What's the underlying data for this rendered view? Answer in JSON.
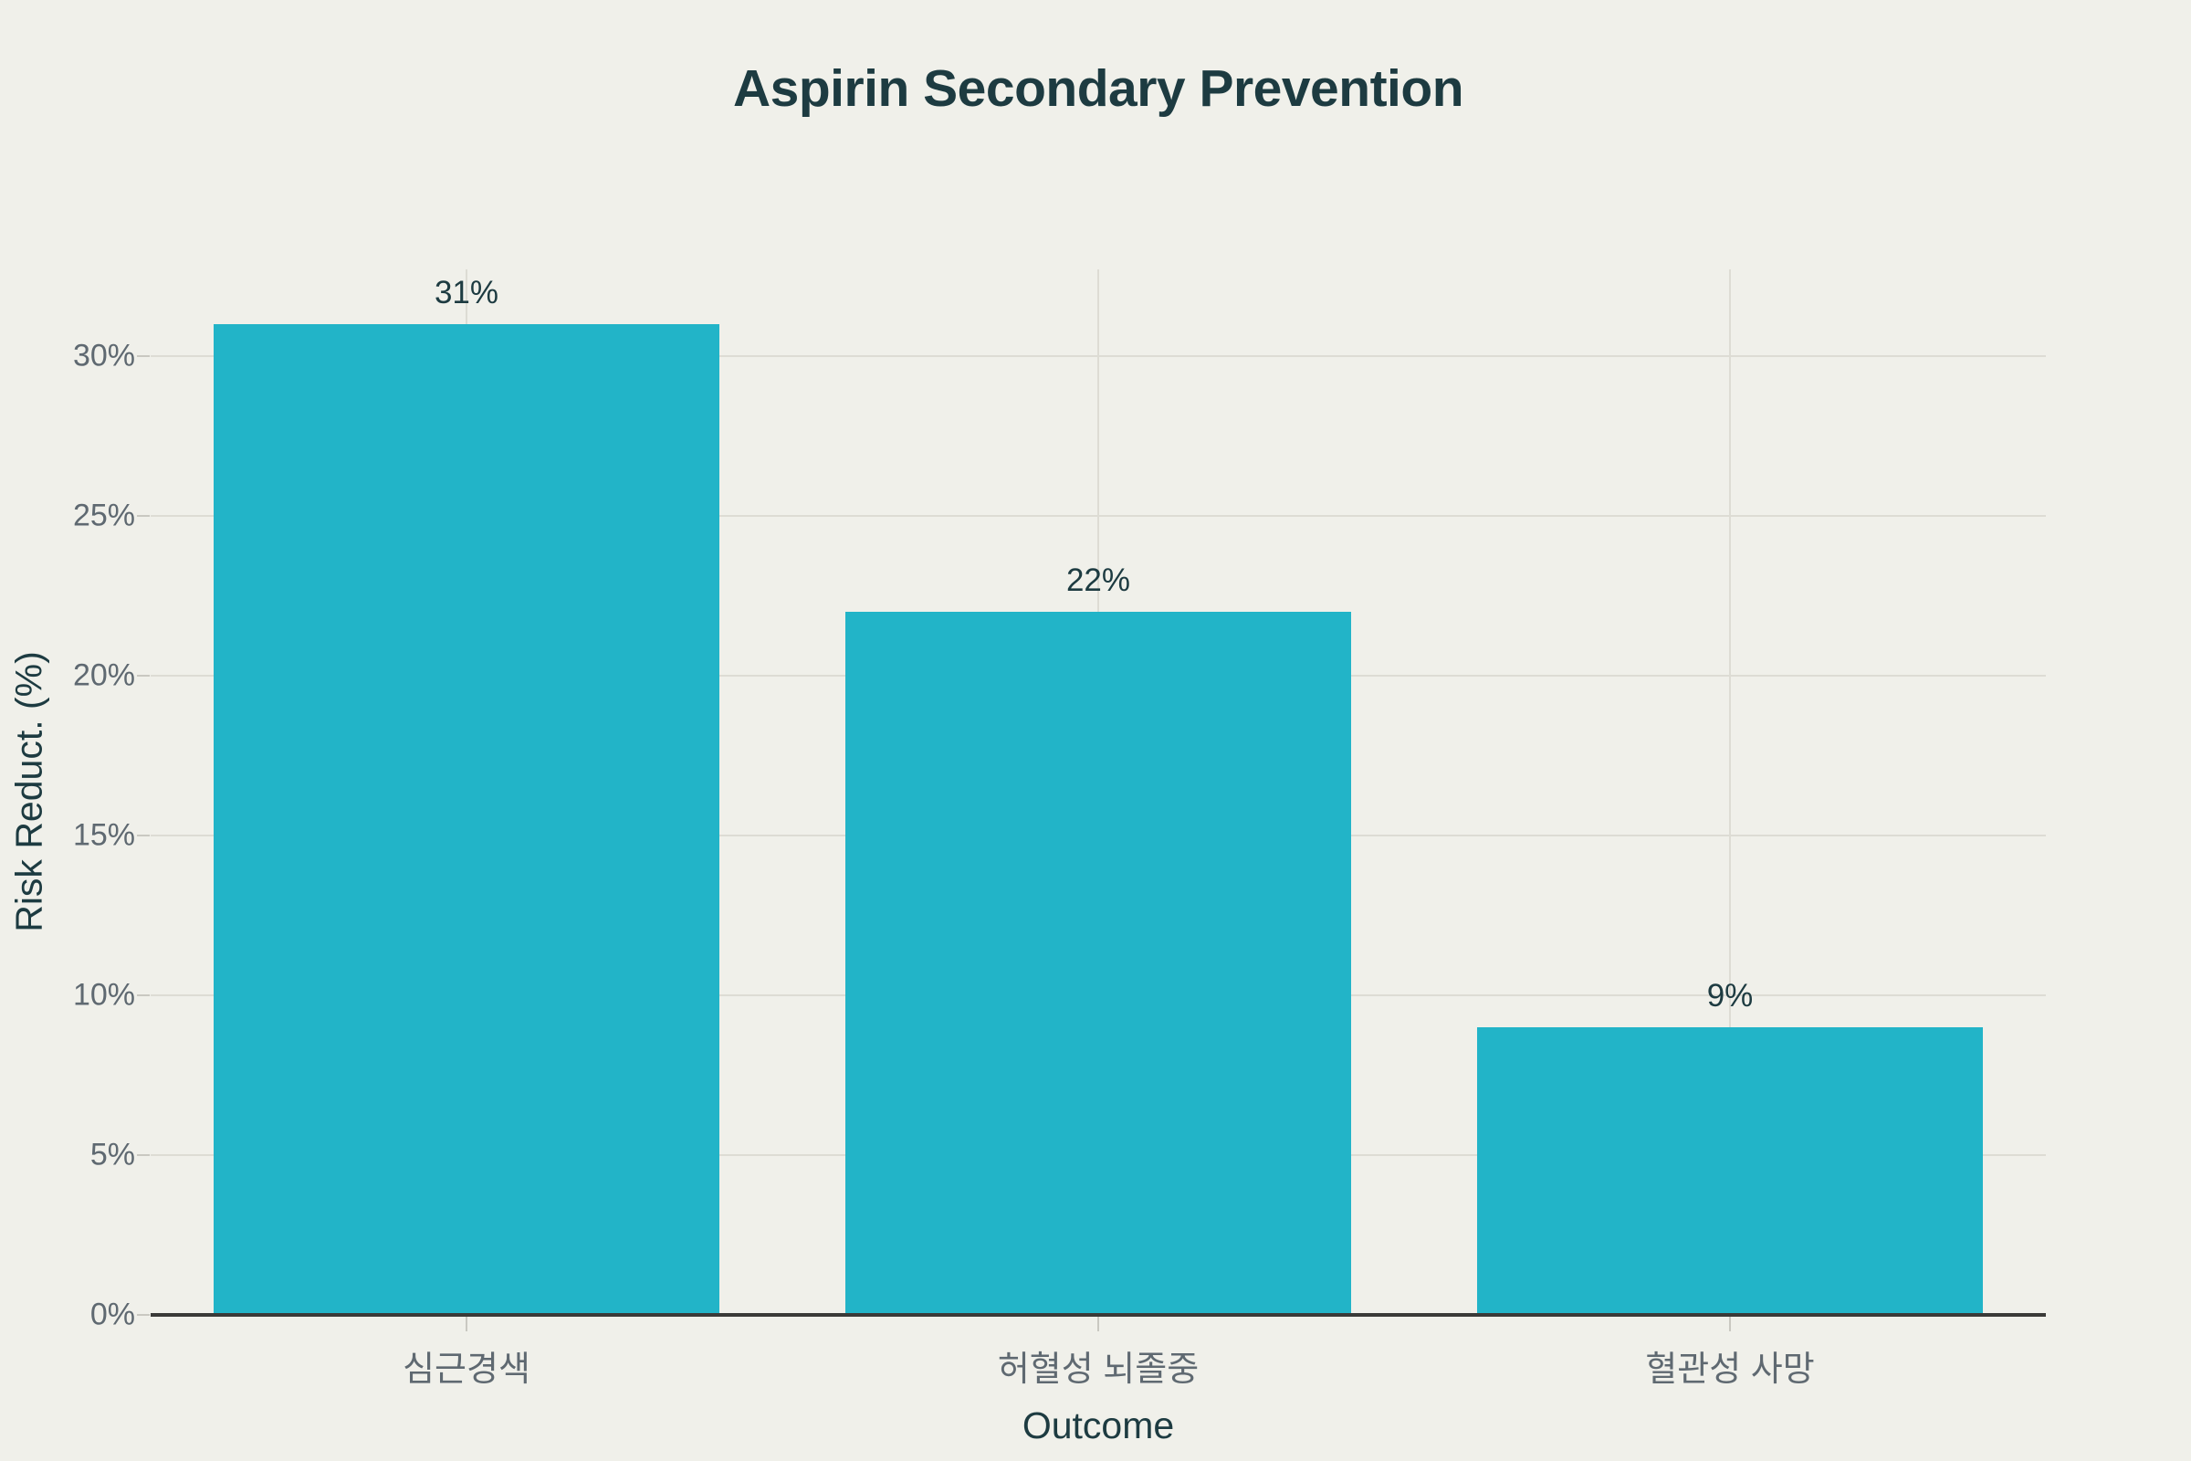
{
  "page": {
    "background_color": "#f0f0ea"
  },
  "chart_data": {
    "type": "bar",
    "title": "Aspirin Secondary Prevention",
    "xlabel": "Outcome",
    "ylabel": "Risk Reduct. (%)",
    "categories": [
      "심근경색",
      "허혈성 뇌졸중",
      "혈관성 사망"
    ],
    "values": [
      31,
      22,
      9
    ],
    "value_labels": [
      "31%",
      "22%",
      "9%"
    ],
    "y_tick_values": [
      0,
      5,
      10,
      15,
      20,
      25,
      30
    ],
    "y_tick_labels": [
      "0%",
      "5%",
      "10%",
      "15%",
      "20%",
      "25%",
      "30%"
    ],
    "ylim": [
      0,
      32.7
    ],
    "grid": "on",
    "legend": "none",
    "colors": {
      "bar_fill": "#22b4c8",
      "title_text": "#1d3b41",
      "value_label_text": "#1d3b41",
      "axis_title_text": "#1d3b41",
      "tick_label_text": "#5f6971",
      "gridline": "#dddcd4",
      "tick_mark": "#c9c8c1",
      "axis_line": "#3a3a38"
    }
  }
}
